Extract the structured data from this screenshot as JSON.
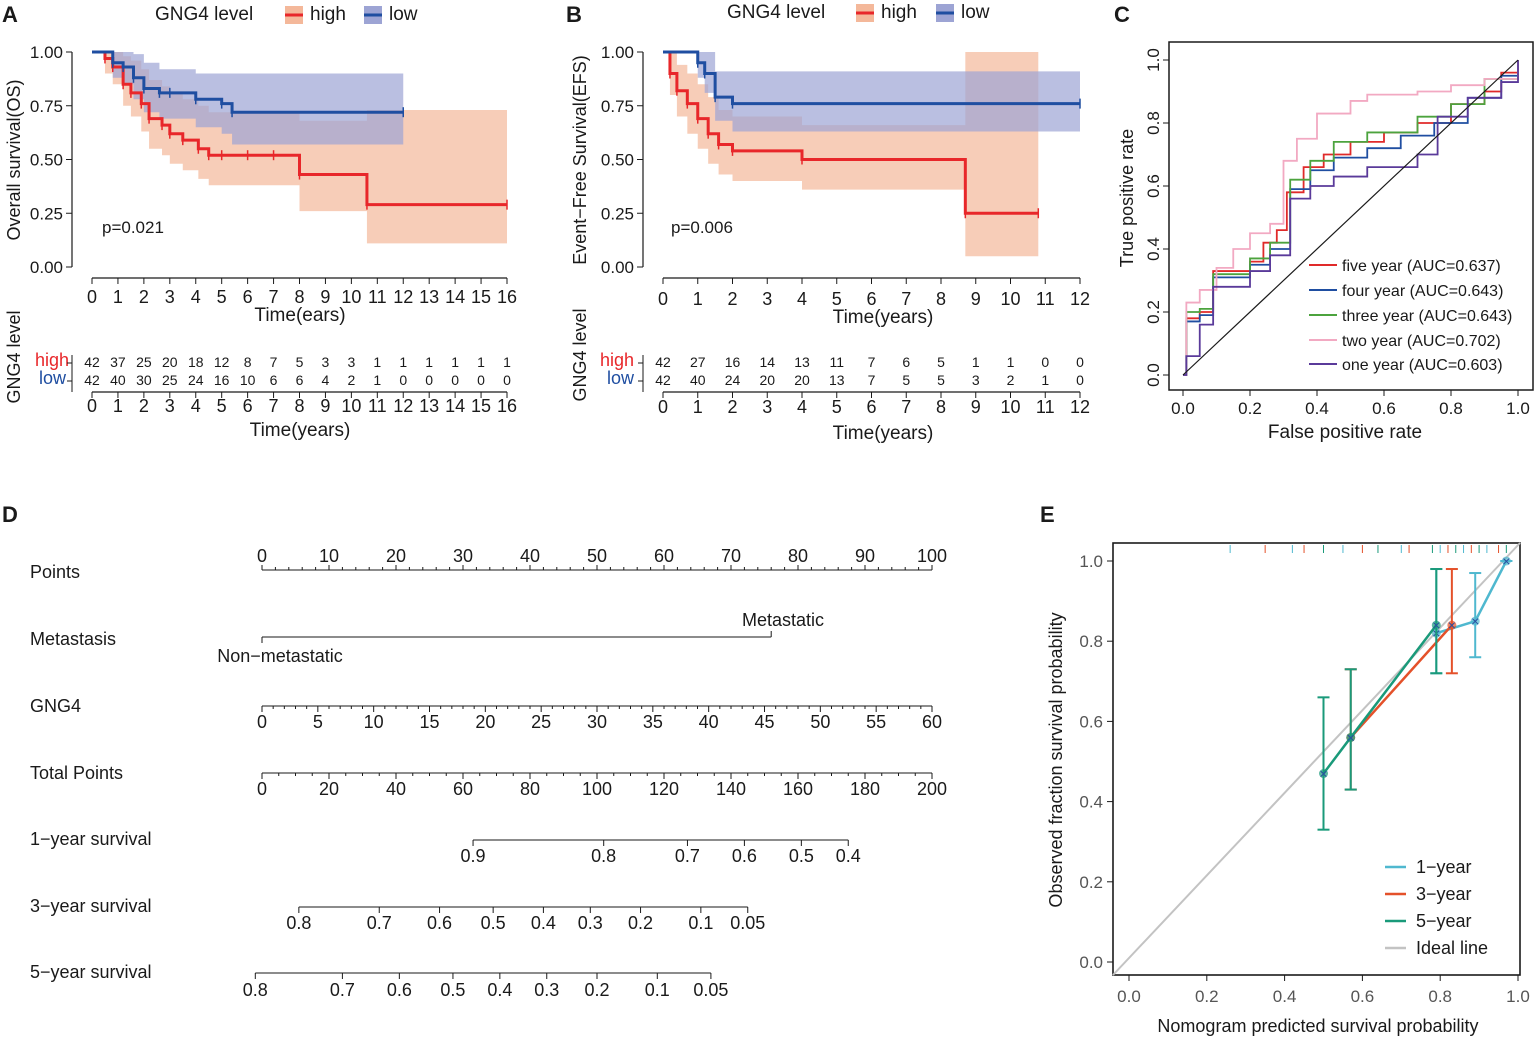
{
  "panels": {
    "A": "A",
    "B": "B",
    "C": "C",
    "D": "D",
    "E": "E"
  },
  "colors": {
    "high": "#e8272a",
    "low": "#1f4ea1",
    "high_band": "#f4b89a",
    "low_band": "#9da4d4",
    "five": "#e02a2a",
    "four": "#1f4ea1",
    "three": "#4ca33e",
    "two": "#f2a9c2",
    "one": "#5a3a9a",
    "y1": "#4fb8cf",
    "y3": "#e4512a",
    "y5": "#1a9a7a",
    "ideal": "#c3c3c3"
  },
  "chart_data": [
    {
      "id": "A",
      "type": "line",
      "legend_title": "GNG4 level",
      "legend": [
        "high",
        "low"
      ],
      "ylabel": "Overall survival(OS)",
      "xlabel": "Time(ears)",
      "xlim": [
        0,
        16
      ],
      "ylim": [
        0,
        1
      ],
      "x_ticks": [
        "0",
        "1",
        "2",
        "3",
        "4",
        "5",
        "6",
        "7",
        "8",
        "9",
        "10",
        "11",
        "12",
        "13",
        "14",
        "15",
        "16"
      ],
      "y_ticks": [
        "0.00",
        "0.25",
        "0.50",
        "0.75",
        "1.00"
      ],
      "pvalue": "p=0.021",
      "series": [
        {
          "name": "high",
          "x": [
            0,
            0.5,
            0.8,
            1.2,
            1.5,
            1.9,
            2.2,
            2.7,
            3,
            3.5,
            4.1,
            4.5,
            5,
            6,
            7,
            8,
            10.6,
            16
          ],
          "y": [
            1,
            0.97,
            0.93,
            0.85,
            0.81,
            0.76,
            0.69,
            0.66,
            0.62,
            0.59,
            0.55,
            0.52,
            0.52,
            0.52,
            0.52,
            0.43,
            0.29,
            0.29
          ],
          "lower": [
            1,
            0.9,
            0.85,
            0.75,
            0.7,
            0.63,
            0.55,
            0.52,
            0.48,
            0.45,
            0.41,
            0.38,
            0.38,
            0.38,
            0.38,
            0.26,
            0.11,
            0.11
          ],
          "upper": [
            1,
            1,
            1,
            0.98,
            0.96,
            0.92,
            0.87,
            0.84,
            0.81,
            0.78,
            0.75,
            0.72,
            0.72,
            0.72,
            0.72,
            0.68,
            0.73,
            0.73
          ]
        },
        {
          "name": "low",
          "x": [
            0,
            0.8,
            1.2,
            1.6,
            2,
            2.6,
            3,
            4,
            5,
            5.4,
            12
          ],
          "y": [
            1,
            0.95,
            0.93,
            0.88,
            0.83,
            0.81,
            0.81,
            0.78,
            0.76,
            0.72,
            0.72
          ],
          "lower": [
            1,
            0.88,
            0.85,
            0.78,
            0.72,
            0.69,
            0.69,
            0.65,
            0.62,
            0.57,
            0.57
          ],
          "upper": [
            1,
            1,
            1,
            0.99,
            0.95,
            0.92,
            0.92,
            0.9,
            0.9,
            0.9,
            0.9
          ]
        }
      ],
      "risk_table": {
        "ylabel": "GNG4 level",
        "xlabel": "Time(years)",
        "rows": [
          {
            "name": "high",
            "values": [
              "42",
              "37",
              "25",
              "20",
              "18",
              "12",
              "8",
              "7",
              "5",
              "3",
              "3",
              "1",
              "1",
              "1",
              "1",
              "1",
              "1"
            ]
          },
          {
            "name": "low",
            "values": [
              "42",
              "40",
              "30",
              "25",
              "24",
              "16",
              "10",
              "6",
              "6",
              "4",
              "2",
              "1",
              "0",
              "0",
              "0",
              "0",
              "0"
            ]
          }
        ]
      }
    },
    {
      "id": "B",
      "type": "line",
      "legend_title": "GNG4 level",
      "legend": [
        "high",
        "low"
      ],
      "ylabel": "Event−Free Survival(EFS)",
      "xlabel": "Time(years)",
      "xlim": [
        0,
        12
      ],
      "ylim": [
        0,
        1
      ],
      "x_ticks": [
        "0",
        "1",
        "2",
        "3",
        "4",
        "5",
        "6",
        "7",
        "8",
        "9",
        "10",
        "11",
        "12"
      ],
      "y_ticks": [
        "0.00",
        "0.25",
        "0.50",
        "0.75",
        "1.00"
      ],
      "pvalue": "p=0.006",
      "series": [
        {
          "name": "high",
          "x": [
            0,
            0.2,
            0.4,
            0.7,
            1,
            1.3,
            1.6,
            2,
            4,
            8.7,
            10.8
          ],
          "y": [
            1,
            0.9,
            0.82,
            0.76,
            0.69,
            0.62,
            0.57,
            0.54,
            0.5,
            0.25,
            0.25
          ],
          "lower": [
            1,
            0.8,
            0.7,
            0.62,
            0.55,
            0.48,
            0.43,
            0.4,
            0.36,
            0.05,
            0.05
          ],
          "upper": [
            1,
            1,
            0.94,
            0.9,
            0.85,
            0.79,
            0.73,
            0.7,
            0.66,
            1,
            1
          ]
        },
        {
          "name": "low",
          "x": [
            0,
            1,
            1.2,
            1.5,
            2,
            12
          ],
          "y": [
            1,
            0.95,
            0.9,
            0.79,
            0.76,
            0.76
          ],
          "lower": [
            1,
            0.88,
            0.81,
            0.68,
            0.63,
            0.63
          ],
          "upper": [
            1,
            1,
            1,
            0.91,
            0.91,
            0.91
          ]
        }
      ],
      "risk_table": {
        "ylabel": "GNG4 level",
        "xlabel": "Time(years)",
        "rows": [
          {
            "name": "high",
            "values": [
              "42",
              "27",
              "16",
              "14",
              "13",
              "11",
              "7",
              "6",
              "5",
              "1",
              "1",
              "0",
              "0"
            ]
          },
          {
            "name": "low",
            "values": [
              "42",
              "40",
              "24",
              "20",
              "20",
              "13",
              "7",
              "5",
              "5",
              "3",
              "2",
              "1",
              "0"
            ]
          }
        ]
      }
    },
    {
      "id": "C",
      "type": "line",
      "xlabel": "False positive rate",
      "ylabel": "True positive rate",
      "xlim": [
        0,
        1
      ],
      "ylim": [
        0,
        1
      ],
      "x_ticks": [
        "0.0",
        "0.2",
        "0.4",
        "0.6",
        "0.8",
        "1.0"
      ],
      "y_ticks": [
        "0.0",
        "0.2",
        "0.4",
        "0.6",
        "0.8",
        "1.0"
      ],
      "series": [
        {
          "name": "five",
          "label": "five year (AUC=0.637)",
          "x": [
            0,
            0.01,
            0.05,
            0.09,
            0.2,
            0.24,
            0.28,
            0.31,
            0.36,
            0.42,
            0.5,
            0.6,
            0.7,
            0.8,
            0.9,
            0.95,
            1
          ],
          "y": [
            0,
            0.18,
            0.2,
            0.33,
            0.36,
            0.42,
            0.46,
            0.58,
            0.66,
            0.7,
            0.74,
            0.77,
            0.8,
            0.86,
            0.9,
            0.96,
            1
          ]
        },
        {
          "name": "four",
          "label": "four year (AUC=0.643)",
          "x": [
            0,
            0.01,
            0.05,
            0.09,
            0.2,
            0.26,
            0.32,
            0.38,
            0.45,
            0.55,
            0.65,
            0.75,
            0.85,
            0.95,
            1
          ],
          "y": [
            0,
            0.17,
            0.19,
            0.31,
            0.35,
            0.4,
            0.59,
            0.65,
            0.69,
            0.72,
            0.76,
            0.8,
            0.88,
            0.95,
            1
          ]
        },
        {
          "name": "three",
          "label": "three year (AUC=0.643)",
          "x": [
            0,
            0.01,
            0.05,
            0.09,
            0.2,
            0.26,
            0.32,
            0.38,
            0.45,
            0.55,
            0.7,
            0.8,
            0.9,
            1
          ],
          "y": [
            0,
            0.2,
            0.21,
            0.32,
            0.37,
            0.42,
            0.62,
            0.68,
            0.74,
            0.77,
            0.82,
            0.86,
            0.94,
            1
          ]
        },
        {
          "name": "two",
          "label": "two year (AUC=0.702)",
          "x": [
            0,
            0.01,
            0.05,
            0.1,
            0.15,
            0.2,
            0.26,
            0.3,
            0.34,
            0.4,
            0.5,
            0.55,
            0.7,
            0.8,
            0.9,
            1
          ],
          "y": [
            0,
            0.23,
            0.27,
            0.34,
            0.4,
            0.45,
            0.48,
            0.68,
            0.75,
            0.83,
            0.87,
            0.89,
            0.9,
            0.92,
            0.94,
            1
          ]
        },
        {
          "name": "one",
          "label": "one year (AUC=0.603)",
          "x": [
            0,
            0.01,
            0.05,
            0.09,
            0.2,
            0.26,
            0.32,
            0.38,
            0.45,
            0.55,
            0.7,
            0.76,
            0.85,
            0.95,
            1
          ],
          "y": [
            0,
            0.06,
            0.16,
            0.28,
            0.33,
            0.38,
            0.56,
            0.6,
            0.63,
            0.66,
            0.7,
            0.82,
            0.88,
            0.93,
            1
          ]
        },
        {
          "name": "diagonal",
          "label": "",
          "x": [
            0,
            1
          ],
          "y": [
            0,
            1
          ]
        }
      ]
    },
    {
      "id": "D",
      "type": "nomogram",
      "rows": [
        {
          "label": "Points",
          "from": 0,
          "to": 100,
          "ticks": [
            "0",
            "10",
            "20",
            "30",
            "40",
            "50",
            "60",
            "70",
            "80",
            "90",
            "100"
          ]
        },
        {
          "label": "Metastasis",
          "levels": [
            "Non−metastatic",
            "Metastatic"
          ],
          "level_points": [
            0,
            76
          ]
        },
        {
          "label": "GNG4",
          "ticks": [
            "0",
            "5",
            "10",
            "15",
            "20",
            "25",
            "30",
            "35",
            "40",
            "45",
            "50",
            "55",
            "60"
          ]
        },
        {
          "label": "Total Points",
          "ticks": [
            "0",
            "20",
            "40",
            "60",
            "80",
            "100",
            "120",
            "140",
            "160",
            "180",
            "200"
          ]
        },
        {
          "label": "1−year survival",
          "ticks": [
            "0.9",
            "0.8",
            "0.7",
            "0.6",
            "0.5",
            "0.4"
          ],
          "total_points": [
            63,
            102,
            127,
            144,
            161,
            175
          ]
        },
        {
          "label": "3−year survival",
          "ticks": [
            "0.8",
            "0.7",
            "0.6",
            "0.5",
            "0.4",
            "0.3",
            "0.2",
            "0.1",
            "0.05"
          ],
          "total_points": [
            11,
            35,
            53,
            69,
            84,
            98,
            113,
            131,
            145
          ]
        },
        {
          "label": "5−year survival",
          "ticks": [
            "0.8",
            "0.7",
            "0.6",
            "0.5",
            "0.4",
            "0.3",
            "0.2",
            "0.1",
            "0.05"
          ],
          "total_points": [
            -2,
            24,
            41,
            57,
            71,
            85,
            100,
            118,
            134
          ]
        }
      ]
    },
    {
      "id": "E",
      "type": "line",
      "xlabel": "Nomogram predicted survival probability",
      "ylabel": "Observed fraction survival probability",
      "xlim": [
        0,
        1
      ],
      "ylim": [
        0,
        1
      ],
      "x_ticks": [
        "0.0",
        "0.2",
        "0.4",
        "0.6",
        "0.8",
        "1.0"
      ],
      "y_ticks": [
        "0.0",
        "0.2",
        "0.4",
        "0.6",
        "0.8",
        "1.0"
      ],
      "legend": [
        "1−year",
        "3−year",
        "5−year",
        "Ideal line"
      ],
      "series": [
        {
          "name": "1−year",
          "x": [
            0.79,
            0.89,
            0.97
          ],
          "y": [
            0.82,
            0.85,
            1.0
          ],
          "lower": [
            0.72,
            0.76,
            1.0
          ],
          "upper": [
            0.98,
            0.97,
            1.0
          ]
        },
        {
          "name": "3−year",
          "x": [
            0.57,
            0.83
          ],
          "y": [
            0.56,
            0.84
          ],
          "lower": [
            0.43,
            0.72
          ],
          "upper": [
            0.73,
            0.98
          ]
        },
        {
          "name": "5−year",
          "x": [
            0.5,
            0.57,
            0.79
          ],
          "y": [
            0.47,
            0.56,
            0.84
          ],
          "lower": [
            0.33,
            0.43,
            0.72
          ],
          "upper": [
            0.66,
            0.73,
            0.98
          ]
        }
      ]
    }
  ]
}
